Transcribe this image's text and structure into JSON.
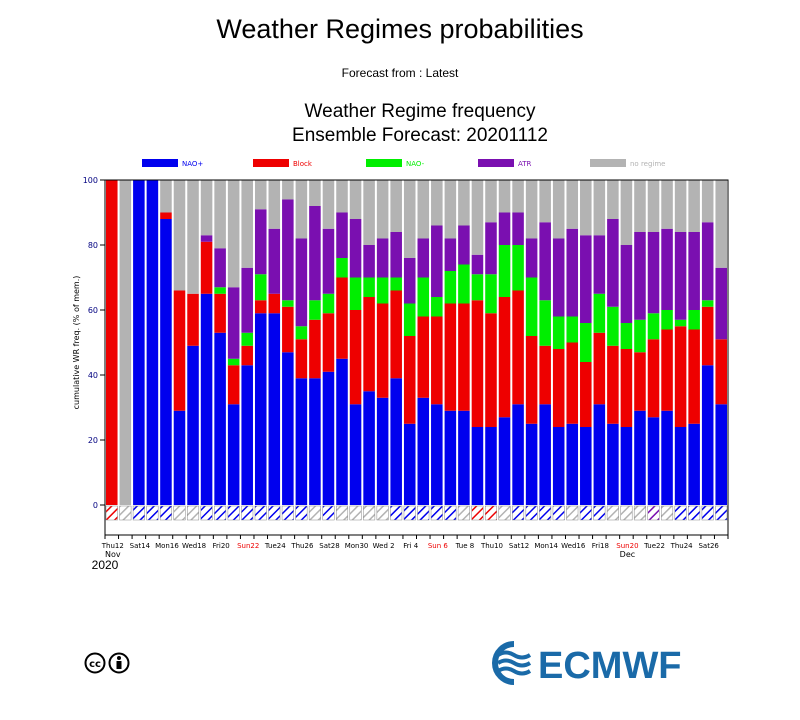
{
  "page": {
    "title": "Weather Regimes probabilities",
    "subtitle": "Forecast from : Latest",
    "chart_title_line1": "Weather Regime frequency",
    "chart_title_line2": "Ensemble Forecast: 20201112",
    "logo_text": "ECMWF"
  },
  "chart_data": {
    "type": "bar",
    "stacked": true,
    "ylabel": "cumulative WR freq. (% of mem.)",
    "ylim": [
      0,
      100
    ],
    "yticks": [
      0,
      20,
      40,
      60,
      80,
      100
    ],
    "legend_position": "top",
    "legend": [
      {
        "name": "NAO+",
        "color": "#0000ee"
      },
      {
        "name": "Block",
        "color": "#ee0000"
      },
      {
        "name": "NAO-",
        "color": "#00ee00"
      },
      {
        "name": "ATR",
        "color": "#7a0fb0"
      },
      {
        "name": "no regime",
        "color": "#b3b3b3"
      }
    ],
    "x_tick_labels": [
      {
        "label": "Thu12",
        "color": "#000000"
      },
      {
        "label": "Sat14",
        "color": "#000000"
      },
      {
        "label": "Mon16",
        "color": "#000000"
      },
      {
        "label": "Wed18",
        "color": "#000000"
      },
      {
        "label": "Fri20",
        "color": "#000000"
      },
      {
        "label": "Sun22",
        "color": "#ee0000"
      },
      {
        "label": "Tue24",
        "color": "#000000"
      },
      {
        "label": "Thu26",
        "color": "#000000"
      },
      {
        "label": "Sat28",
        "color": "#000000"
      },
      {
        "label": "Mon30",
        "color": "#000000"
      },
      {
        "label": "Wed 2",
        "color": "#000000"
      },
      {
        "label": "Fri 4",
        "color": "#000000"
      },
      {
        "label": "Sun 6",
        "color": "#ee0000"
      },
      {
        "label": "Tue 8",
        "color": "#000000"
      },
      {
        "label": "Thu10",
        "color": "#000000"
      },
      {
        "label": "Sat12",
        "color": "#000000"
      },
      {
        "label": "Mon14",
        "color": "#000000"
      },
      {
        "label": "Wed16",
        "color": "#000000"
      },
      {
        "label": "Fri18",
        "color": "#000000"
      },
      {
        "label": "Sun20",
        "color": "#ee0000"
      },
      {
        "label": "Tue22",
        "color": "#000000"
      },
      {
        "label": "Thu24",
        "color": "#000000"
      },
      {
        "label": "Sat26",
        "color": "#000000"
      }
    ],
    "month_labels": [
      {
        "label": "Nov",
        "at_bar": 0
      },
      {
        "label": "Dec",
        "at_bar": 38
      }
    ],
    "year_label": "2020",
    "bars": [
      {
        "nao_plus": 0,
        "block": 100,
        "nao_minus": 0,
        "atr": 0,
        "no_regime": 0,
        "dominant": "block"
      },
      {
        "nao_plus": 0,
        "block": 0,
        "nao_minus": 0,
        "atr": 0,
        "no_regime": 100,
        "dominant": "none"
      },
      {
        "nao_plus": 100,
        "block": 0,
        "nao_minus": 0,
        "atr": 0,
        "no_regime": 0,
        "dominant": "nao_plus"
      },
      {
        "nao_plus": 100,
        "block": 0,
        "nao_minus": 0,
        "atr": 0,
        "no_regime": 0,
        "dominant": "nao_plus"
      },
      {
        "nao_plus": 88,
        "block": 2,
        "nao_minus": 0,
        "atr": 0,
        "no_regime": 10,
        "dominant": "nao_plus"
      },
      {
        "nao_plus": 29,
        "block": 37,
        "nao_minus": 0,
        "atr": 0,
        "no_regime": 34,
        "dominant": "none"
      },
      {
        "nao_plus": 49,
        "block": 16,
        "nao_minus": 0,
        "atr": 0,
        "no_regime": 35,
        "dominant": "none"
      },
      {
        "nao_plus": 65,
        "block": 16,
        "nao_minus": 0,
        "atr": 2,
        "no_regime": 17,
        "dominant": "nao_plus"
      },
      {
        "nao_plus": 53,
        "block": 12,
        "nao_minus": 2,
        "atr": 12,
        "no_regime": 21,
        "dominant": "nao_plus"
      },
      {
        "nao_plus": 31,
        "block": 12,
        "nao_minus": 2,
        "atr": 22,
        "no_regime": 33,
        "dominant": "nao_plus"
      },
      {
        "nao_plus": 43,
        "block": 6,
        "nao_minus": 4,
        "atr": 20,
        "no_regime": 27,
        "dominant": "nao_plus"
      },
      {
        "nao_plus": 59,
        "block": 4,
        "nao_minus": 8,
        "atr": 20,
        "no_regime": 9,
        "dominant": "nao_plus"
      },
      {
        "nao_plus": 59,
        "block": 6,
        "nao_minus": 0,
        "atr": 20,
        "no_regime": 15,
        "dominant": "nao_plus"
      },
      {
        "nao_plus": 47,
        "block": 14,
        "nao_minus": 2,
        "atr": 31,
        "no_regime": 6,
        "dominant": "nao_plus"
      },
      {
        "nao_plus": 39,
        "block": 12,
        "nao_minus": 4,
        "atr": 27,
        "no_regime": 18,
        "dominant": "nao_plus"
      },
      {
        "nao_plus": 39,
        "block": 18,
        "nao_minus": 6,
        "atr": 29,
        "no_regime": 8,
        "dominant": "none"
      },
      {
        "nao_plus": 41,
        "block": 18,
        "nao_minus": 6,
        "atr": 20,
        "no_regime": 15,
        "dominant": "nao_plus"
      },
      {
        "nao_plus": 45,
        "block": 25,
        "nao_minus": 6,
        "atr": 14,
        "no_regime": 10,
        "dominant": "none"
      },
      {
        "nao_plus": 31,
        "block": 29,
        "nao_minus": 10,
        "atr": 18,
        "no_regime": 12,
        "dominant": "none"
      },
      {
        "nao_plus": 35,
        "block": 29,
        "nao_minus": 6,
        "atr": 10,
        "no_regime": 20,
        "dominant": "none"
      },
      {
        "nao_plus": 33,
        "block": 29,
        "nao_minus": 8,
        "atr": 12,
        "no_regime": 18,
        "dominant": "none"
      },
      {
        "nao_plus": 39,
        "block": 27,
        "nao_minus": 4,
        "atr": 14,
        "no_regime": 16,
        "dominant": "nao_plus"
      },
      {
        "nao_plus": 25,
        "block": 27,
        "nao_minus": 10,
        "atr": 14,
        "no_regime": 24,
        "dominant": "nao_plus"
      },
      {
        "nao_plus": 33,
        "block": 25,
        "nao_minus": 12,
        "atr": 12,
        "no_regime": 18,
        "dominant": "nao_plus"
      },
      {
        "nao_plus": 31,
        "block": 27,
        "nao_minus": 6,
        "atr": 22,
        "no_regime": 14,
        "dominant": "nao_plus"
      },
      {
        "nao_plus": 29,
        "block": 33,
        "nao_minus": 10,
        "atr": 10,
        "no_regime": 18,
        "dominant": "nao_plus"
      },
      {
        "nao_plus": 29,
        "block": 33,
        "nao_minus": 12,
        "atr": 12,
        "no_regime": 14,
        "dominant": "none"
      },
      {
        "nao_plus": 24,
        "block": 39,
        "nao_minus": 8,
        "atr": 6,
        "no_regime": 23,
        "dominant": "block"
      },
      {
        "nao_plus": 24,
        "block": 35,
        "nao_minus": 12,
        "atr": 16,
        "no_regime": 13,
        "dominant": "block"
      },
      {
        "nao_plus": 27,
        "block": 37,
        "nao_minus": 16,
        "atr": 10,
        "no_regime": 10,
        "dominant": "none"
      },
      {
        "nao_plus": 31,
        "block": 35,
        "nao_minus": 14,
        "atr": 10,
        "no_regime": 10,
        "dominant": "nao_plus"
      },
      {
        "nao_plus": 25,
        "block": 27,
        "nao_minus": 18,
        "atr": 12,
        "no_regime": 18,
        "dominant": "nao_plus"
      },
      {
        "nao_plus": 31,
        "block": 18,
        "nao_minus": 14,
        "atr": 24,
        "no_regime": 13,
        "dominant": "nao_plus"
      },
      {
        "nao_plus": 24,
        "block": 24,
        "nao_minus": 10,
        "atr": 24,
        "no_regime": 18,
        "dominant": "nao_plus"
      },
      {
        "nao_plus": 25,
        "block": 25,
        "nao_minus": 8,
        "atr": 27,
        "no_regime": 15,
        "dominant": "none"
      },
      {
        "nao_plus": 24,
        "block": 20,
        "nao_minus": 12,
        "atr": 27,
        "no_regime": 17,
        "dominant": "nao_plus"
      },
      {
        "nao_plus": 31,
        "block": 22,
        "nao_minus": 12,
        "atr": 18,
        "no_regime": 17,
        "dominant": "nao_plus"
      },
      {
        "nao_plus": 25,
        "block": 24,
        "nao_minus": 12,
        "atr": 27,
        "no_regime": 12,
        "dominant": "none"
      },
      {
        "nao_plus": 24,
        "block": 24,
        "nao_minus": 8,
        "atr": 24,
        "no_regime": 20,
        "dominant": "none"
      },
      {
        "nao_plus": 29,
        "block": 18,
        "nao_minus": 10,
        "atr": 27,
        "no_regime": 16,
        "dominant": "none"
      },
      {
        "nao_plus": 27,
        "block": 24,
        "nao_minus": 8,
        "atr": 25,
        "no_regime": 16,
        "dominant": "atr"
      },
      {
        "nao_plus": 29,
        "block": 25,
        "nao_minus": 6,
        "atr": 25,
        "no_regime": 15,
        "dominant": "none"
      },
      {
        "nao_plus": 24,
        "block": 31,
        "nao_minus": 2,
        "atr": 27,
        "no_regime": 16,
        "dominant": "nao_plus"
      },
      {
        "nao_plus": 25,
        "block": 29,
        "nao_minus": 6,
        "atr": 24,
        "no_regime": 16,
        "dominant": "nao_plus"
      },
      {
        "nao_plus": 43,
        "block": 18,
        "nao_minus": 2,
        "atr": 24,
        "no_regime": 13,
        "dominant": "nao_plus"
      },
      {
        "nao_plus": 31,
        "block": 20,
        "nao_minus": 0,
        "atr": 22,
        "no_regime": 27,
        "dominant": "nao_plus"
      }
    ]
  }
}
